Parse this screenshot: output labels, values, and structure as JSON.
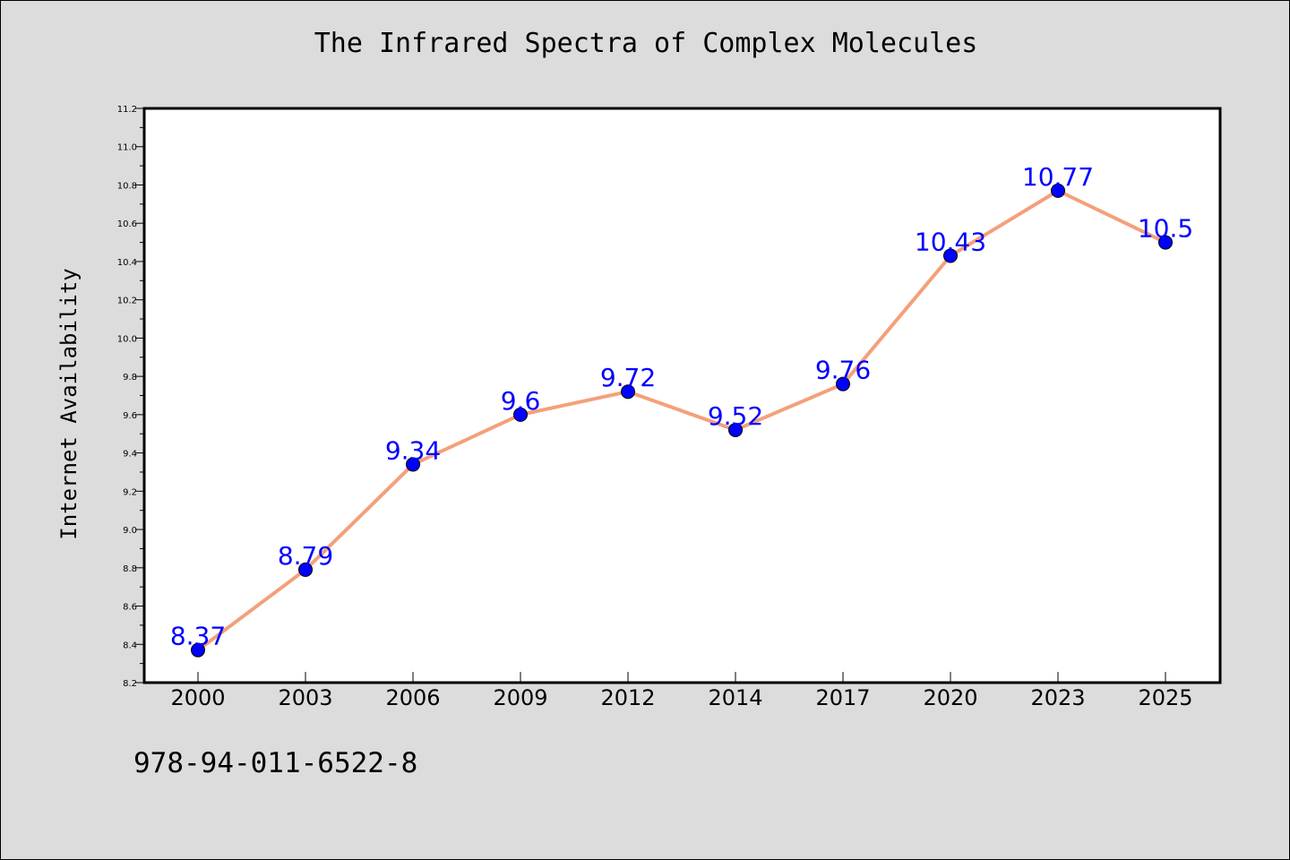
{
  "chart_data": {
    "type": "line",
    "title": "The Infrared Spectra of Complex Molecules",
    "xlabel": "",
    "ylabel": "Internet Availability",
    "categories": [
      "2000",
      "2003",
      "2006",
      "2009",
      "2012",
      "2014",
      "2017",
      "2020",
      "2023",
      "2025"
    ],
    "values": [
      8.37,
      8.79,
      9.34,
      9.6,
      9.72,
      9.52,
      9.76,
      10.43,
      10.77,
      10.5
    ],
    "data_labels": [
      "8.37",
      "8.79",
      "9.34",
      "9.6",
      "9.72",
      "9.52",
      "9.76",
      "10.43",
      "10.77",
      "10.5"
    ],
    "ylim": [
      8.2,
      11.2
    ],
    "yticks": [
      "8.2",
      "8.4",
      "8.6",
      "8.8",
      "9.0",
      "9.2",
      "9.4",
      "9.6",
      "9.8",
      "10.0",
      "10.2",
      "10.4",
      "10.6",
      "10.8",
      "11.0",
      "11.2"
    ],
    "grid": false,
    "line_color": "#f4a07a",
    "marker_color": "#0000ff",
    "label_color": "#0000ff"
  },
  "footer": {
    "id_text": "978-94-011-6522-8"
  }
}
